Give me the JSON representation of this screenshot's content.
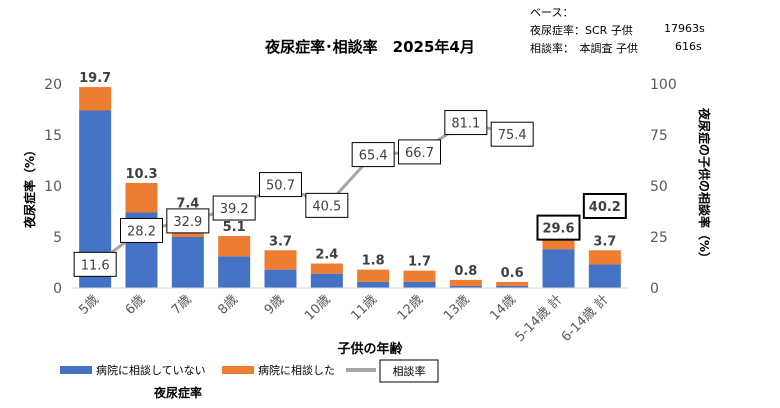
{
  "base_note": {
    "heading": "ベース：",
    "row1_label": "夜尿症率：SCR 子供",
    "row1_value": "17963s",
    "row2_label": "相談率：　本調査 子供",
    "row2_value": "616s"
  },
  "chart_data": {
    "type": "bar",
    "title": "夜尿症率･相談率　2025年4月",
    "xlabel": "子供の年齢",
    "ylabel": "夜尿症率（%）",
    "y2label": "夜尿症の子供の相談率（%）",
    "ylim": [
      0,
      20
    ],
    "y2lim": [
      0,
      100
    ],
    "yticks": [
      0,
      5,
      10,
      15,
      20
    ],
    "y2ticks": [
      0,
      25,
      50,
      75,
      100
    ],
    "grid": false,
    "stacked": true,
    "categories": [
      "5歳",
      "6歳",
      "7歳",
      "8歳",
      "9歳",
      "10歳",
      "11歳",
      "12歳",
      "13歳",
      "14歳",
      "5-14歳 計",
      "6-14歳 計"
    ],
    "series": [
      {
        "name": "病院に相談していない",
        "color": "#4472C4",
        "values": [
          17.4,
          7.4,
          5.0,
          3.1,
          1.8,
          1.4,
          0.6,
          0.6,
          0.2,
          0.2,
          3.8,
          2.3
        ]
      },
      {
        "name": "病院に相談した",
        "color": "#ED7D31",
        "values": [
          2.3,
          2.9,
          2.4,
          2.0,
          1.9,
          1.0,
          1.2,
          1.1,
          0.6,
          0.4,
          1.5,
          1.4
        ]
      }
    ],
    "totals": [
      "19.7",
      "10.3",
      "7.4",
      "5.1",
      "3.7",
      "2.4",
      "1.8",
      "1.7",
      "0.8",
      "0.6",
      "5.3",
      "3.7"
    ],
    "line": {
      "name": "相談率",
      "color": "#A5A5A5",
      "axis": "right",
      "values": [
        11.6,
        28.2,
        32.9,
        39.2,
        50.7,
        40.5,
        65.4,
        66.7,
        81.1,
        75.4,
        29.6,
        40.2
      ],
      "labels": [
        "11.6",
        "28.2",
        "32.9",
        "39.2",
        "50.7",
        "40.5",
        "65.4",
        "66.7",
        "81.1",
        "75.4",
        "29.6",
        "40.2"
      ],
      "connected_points": 10
    },
    "legend_title": "夜尿症率",
    "legend_position": "bottom-left"
  }
}
